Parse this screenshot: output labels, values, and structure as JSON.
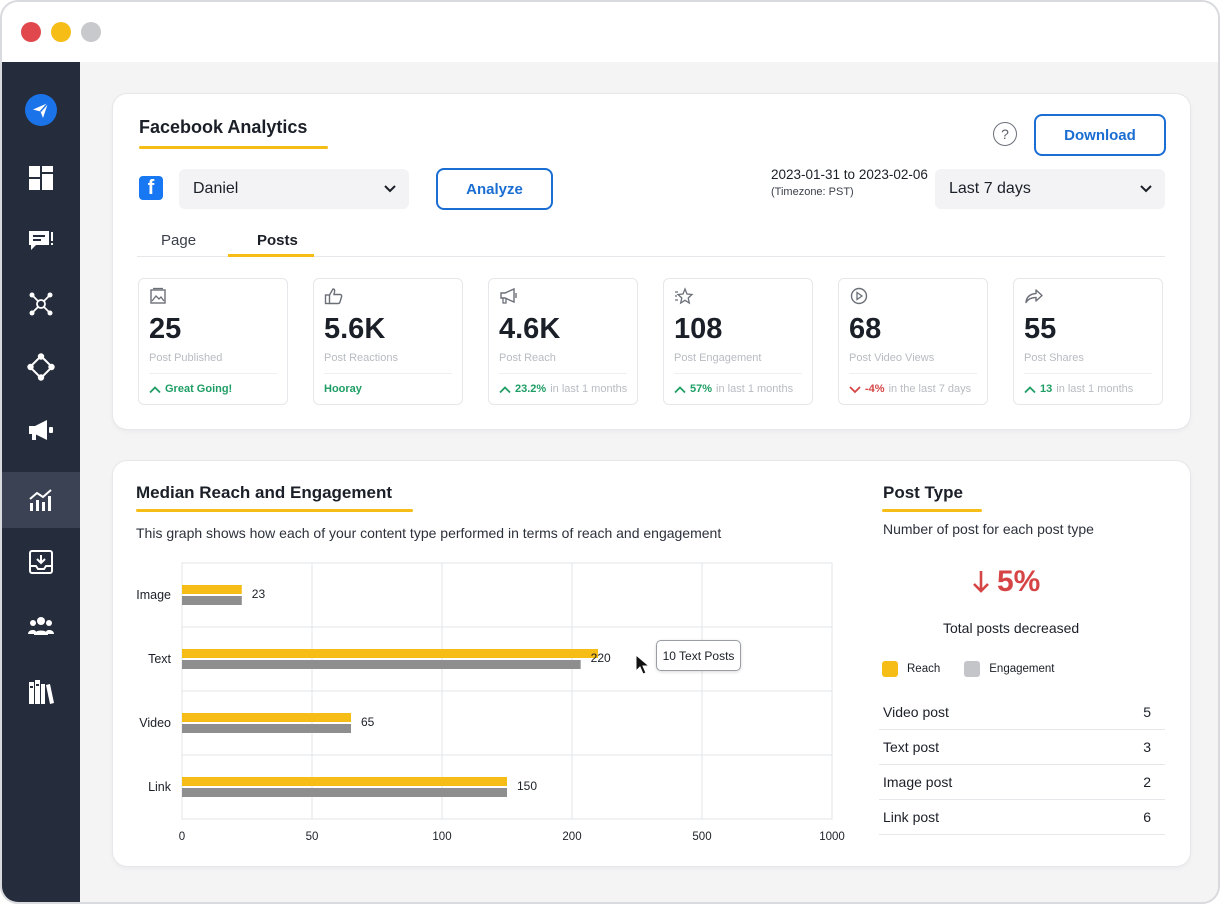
{
  "window": {
    "controls": [
      "close",
      "minimize",
      "zoom"
    ]
  },
  "sidebar": {
    "items": [
      {
        "icon": "paper-plane-logo-icon"
      },
      {
        "icon": "dashboard-grid-icon"
      },
      {
        "icon": "chat-bubble-icon"
      },
      {
        "icon": "network-nodes-icon"
      },
      {
        "icon": "connection-diamond-icon"
      },
      {
        "icon": "megaphone-icon"
      },
      {
        "icon": "analytics-chart-icon",
        "active": true
      },
      {
        "icon": "inbox-download-icon"
      },
      {
        "icon": "team-users-icon"
      },
      {
        "icon": "library-books-icon"
      }
    ]
  },
  "header": {
    "title": "Facebook Analytics",
    "help_label": "?",
    "download_label": "Download",
    "account_select": "Daniel",
    "analyze_label": "Analyze",
    "date_range": "2023-01-31 to 2023-02-06",
    "timezone": "(Timezone: PST)",
    "period_select": "Last 7 days"
  },
  "tabs": [
    {
      "label": "Page",
      "active": false
    },
    {
      "label": "Posts",
      "active": true
    }
  ],
  "stats": [
    {
      "icon": "image-icon",
      "value": "25",
      "label": "Post Published",
      "trend": "up",
      "foot_value": "Great Going!",
      "foot_text": ""
    },
    {
      "icon": "thumbs-up-icon",
      "value": "5.6K",
      "label": "Post Reactions",
      "trend": "none",
      "foot_value": "Hooray",
      "foot_text": ""
    },
    {
      "icon": "megaphone-icon",
      "value": "4.6K",
      "label": "Post Reach",
      "trend": "up",
      "foot_value": "23.2%",
      "foot_text": "in last 1 months"
    },
    {
      "icon": "sparkle-star-icon",
      "value": "108",
      "label": "Post Engagement",
      "trend": "up",
      "foot_value": "57%",
      "foot_text": "in last 1 months"
    },
    {
      "icon": "play-circle-icon",
      "value": "68",
      "label": "Post Video Views",
      "trend": "down",
      "foot_value": "-4%",
      "foot_text": "in the last 7 days"
    },
    {
      "icon": "share-arrow-icon",
      "value": "55",
      "label": "Post Shares",
      "trend": "up",
      "foot_value": "13",
      "foot_text": "in last 1 months"
    }
  ],
  "median": {
    "title": "Median Reach and Engagement",
    "description": "This graph shows how each of your content type performed in terms of reach and engagement",
    "tooltip": "10 Text Posts"
  },
  "chart_data": {
    "type": "bar",
    "orientation": "horizontal",
    "categories": [
      "Image",
      "Text",
      "Video",
      "Link"
    ],
    "series": [
      {
        "name": "Reach",
        "color": "#f6bd17",
        "values": [
          23,
          260,
          65,
          150
        ]
      },
      {
        "name": "Engagement",
        "color": "#8e8e8e",
        "values": [
          23,
          220,
          65,
          150
        ]
      }
    ],
    "value_labels": [
      "23",
      "220",
      "65",
      "150"
    ],
    "x_ticks": [
      0,
      50,
      100,
      200,
      500,
      1000
    ],
    "grid": true
  },
  "post_type": {
    "title": "Post Type",
    "description": "Number of post for each post type",
    "change": "5%",
    "change_direction": "down",
    "change_caption": "Total posts decreased",
    "legend": [
      {
        "name": "Reach",
        "color": "#f6bd17"
      },
      {
        "name": "Engagement",
        "color": "#c4c5c9"
      }
    ],
    "rows": [
      {
        "name": "Video post",
        "count": "5"
      },
      {
        "name": "Text post",
        "count": "3"
      },
      {
        "name": "Image post",
        "count": "2"
      },
      {
        "name": "Link post",
        "count": "6"
      }
    ]
  },
  "colors": {
    "accent": "#f6bd17",
    "primary": "#1a6dd2",
    "sidebar": "#252c3c",
    "up": "#1e9e64",
    "down": "#d64545"
  }
}
